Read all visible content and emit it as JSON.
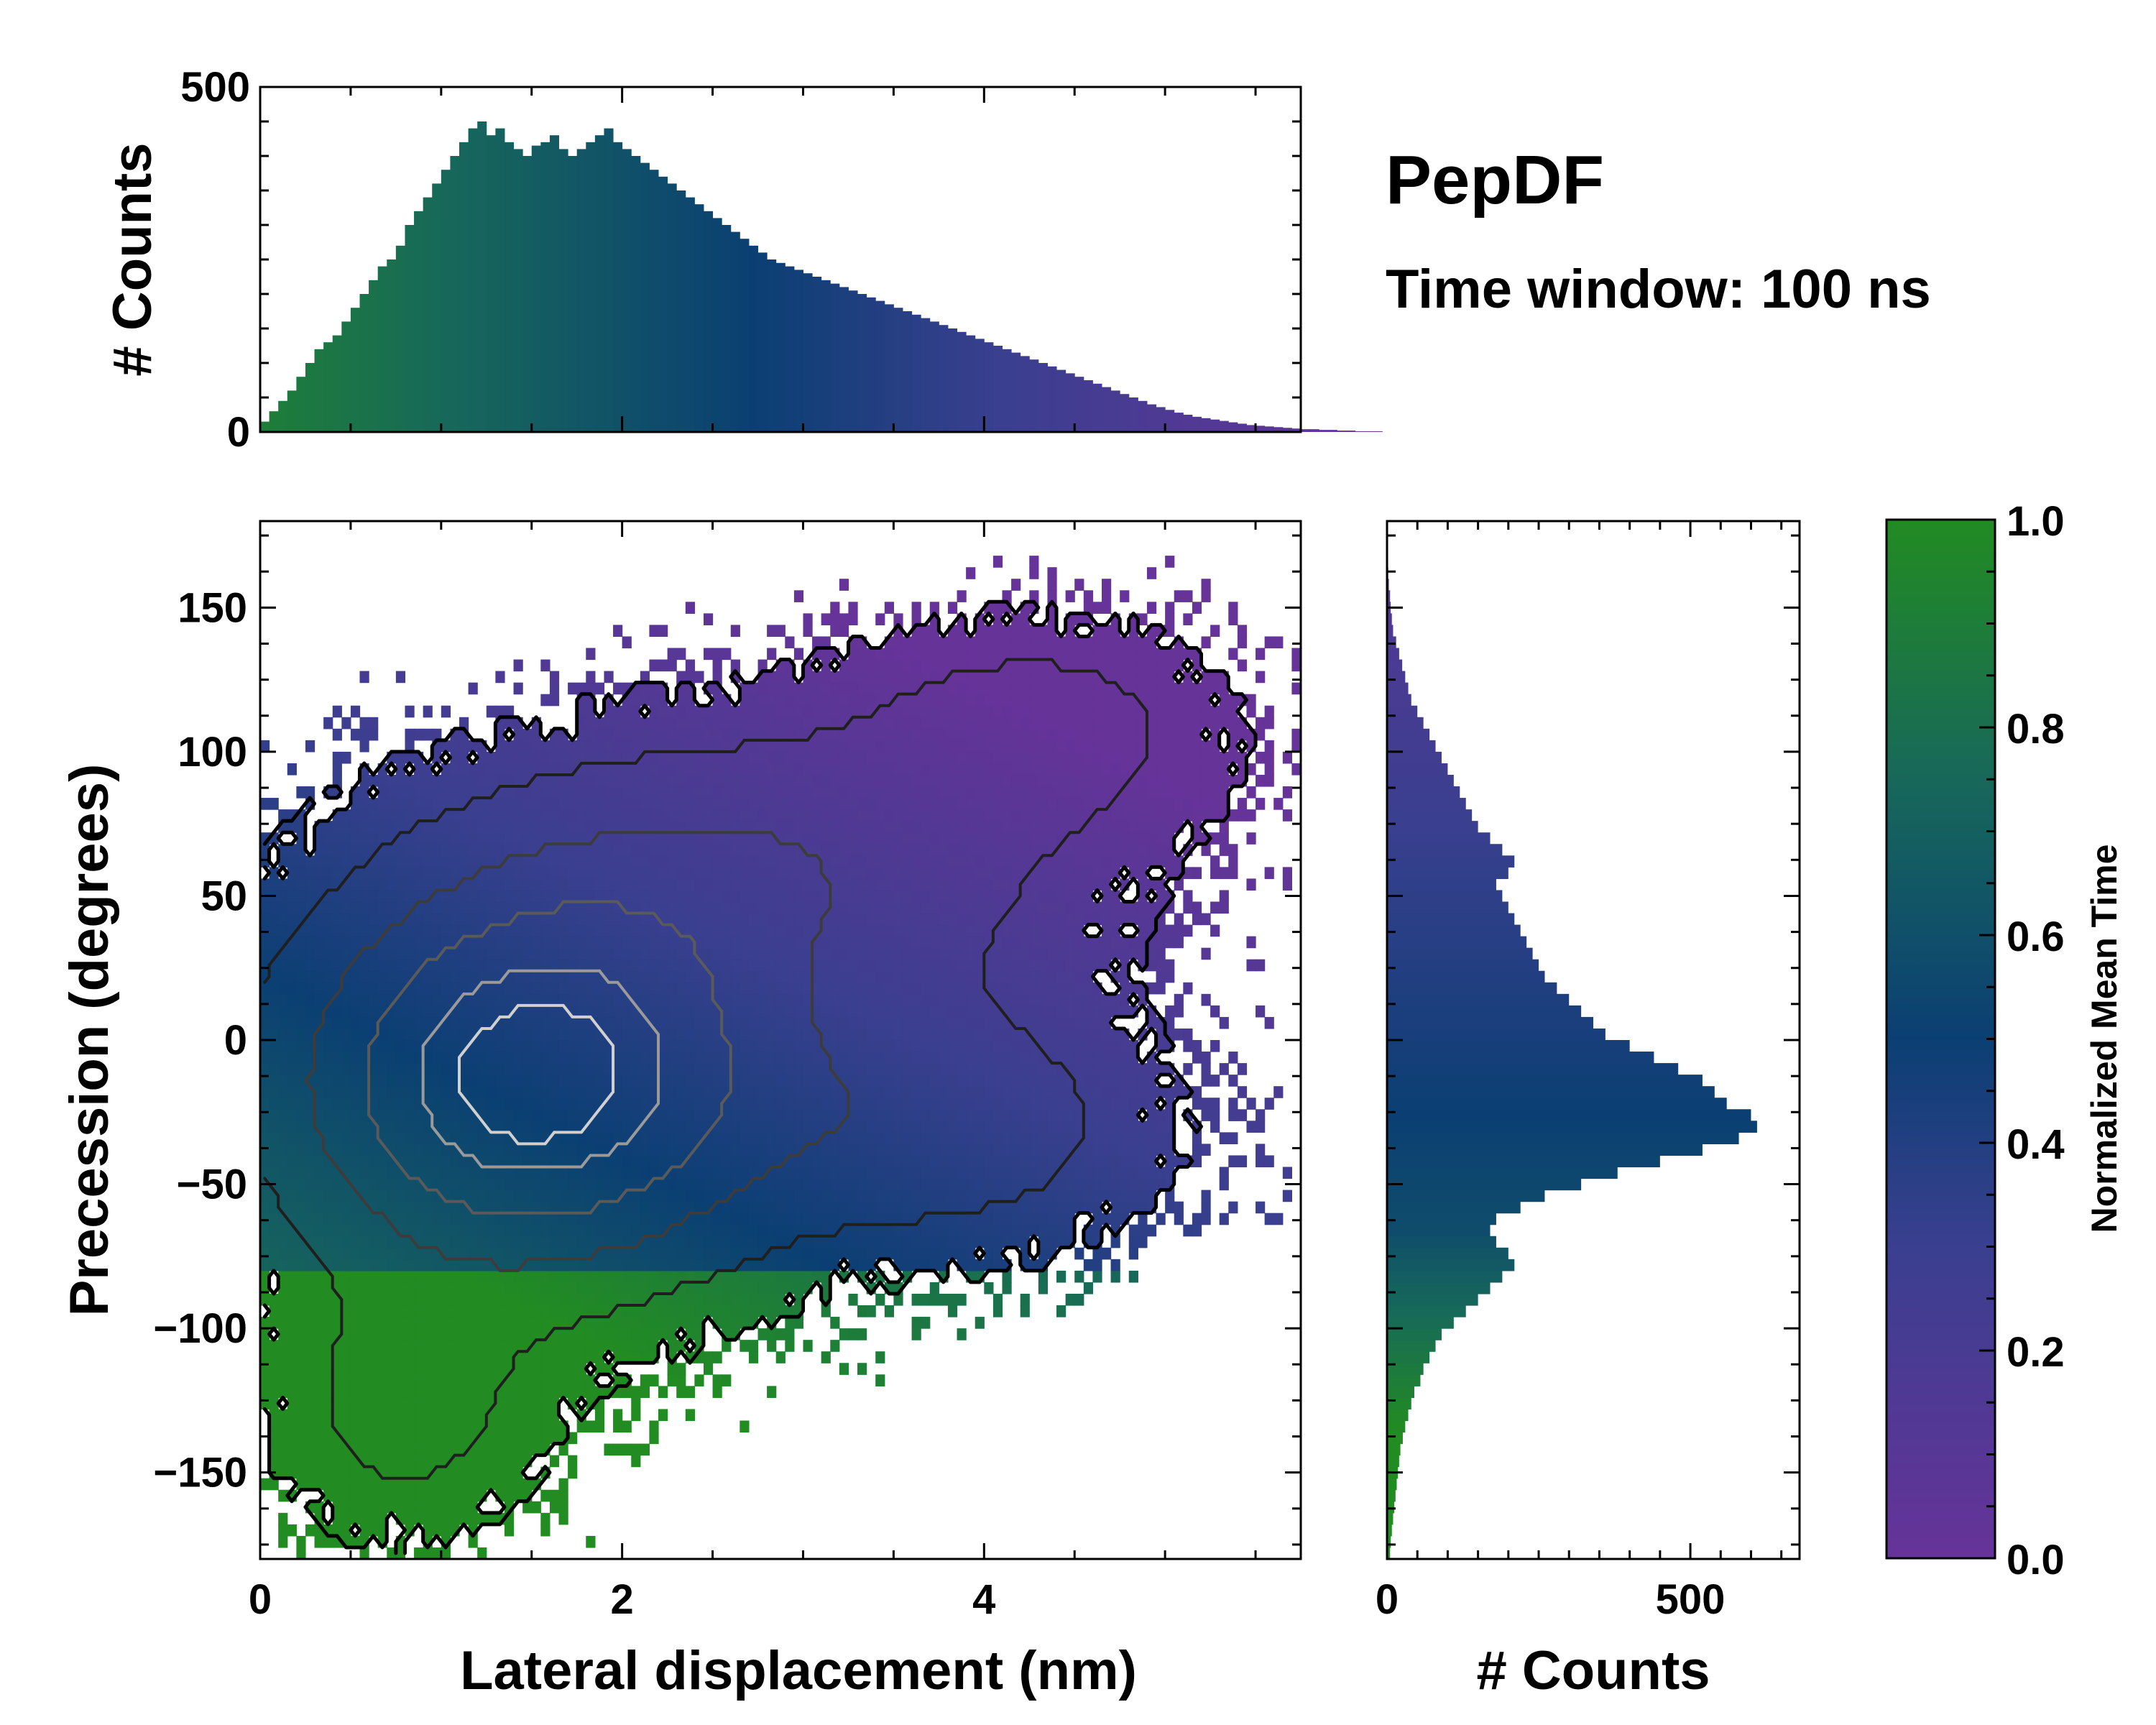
{
  "title": "PepDF",
  "subtitle": "Time window: 100 ns",
  "colors": {
    "low": "#663399",
    "mid": "#0b3f73",
    "high": "#228b22",
    "axis": "#000000"
  },
  "chart_data": [
    {
      "id": "top-histogram",
      "type": "bar",
      "title": "",
      "xlabel": "",
      "ylabel": "# Counts",
      "xlim": [
        0,
        5.75
      ],
      "ylim": [
        0,
        500
      ],
      "yticks": [
        0,
        500
      ],
      "bin_width": 0.05,
      "x_start": 0.0,
      "values": [
        15,
        30,
        45,
        60,
        80,
        100,
        120,
        130,
        140,
        160,
        180,
        200,
        220,
        240,
        250,
        270,
        300,
        320,
        340,
        360,
        380,
        400,
        420,
        440,
        450,
        430,
        440,
        420,
        410,
        400,
        415,
        420,
        430,
        410,
        400,
        410,
        420,
        430,
        440,
        420,
        410,
        400,
        390,
        380,
        370,
        360,
        350,
        340,
        330,
        320,
        310,
        300,
        290,
        280,
        270,
        260,
        250,
        245,
        240,
        235,
        230,
        225,
        220,
        215,
        210,
        205,
        200,
        195,
        190,
        185,
        180,
        175,
        170,
        165,
        160,
        155,
        150,
        145,
        140,
        135,
        130,
        125,
        120,
        115,
        110,
        105,
        100,
        95,
        90,
        85,
        80,
        75,
        70,
        65,
        60,
        55,
        50,
        45,
        40,
        36,
        32,
        28,
        25,
        22,
        20,
        18,
        16,
        14,
        12,
        10,
        9,
        8,
        7,
        6,
        5,
        4,
        4,
        3,
        3,
        2,
        2,
        1,
        1,
        1,
        0
      ]
    },
    {
      "id": "main-heatmap",
      "type": "heatmap",
      "title": "",
      "xlabel": "Lateral displacement (nm)",
      "ylabel": "Precession (degrees)",
      "xlim": [
        0,
        5.75
      ],
      "ylim": [
        -180,
        180
      ],
      "xticks": [
        0,
        2,
        4
      ],
      "yticks": [
        -150,
        -100,
        -50,
        0,
        50,
        100,
        150
      ],
      "ytick_labels": [
        "−150",
        "−100",
        "−50",
        "0",
        "50",
        "100",
        "150"
      ],
      "bin_width_x": 0.05,
      "bin_width_y": 4,
      "color_meaning": "Normalized Mean Time (0 = purple, 1 = green)",
      "density_clusters": [
        {
          "cx": 1.5,
          "cy": -15,
          "sx": 0.9,
          "sy": 45,
          "w": 1.0
        },
        {
          "cx": 2.8,
          "cy": 60,
          "sx": 1.2,
          "sy": 35,
          "w": 0.35
        },
        {
          "cx": 4.3,
          "cy": 110,
          "sx": 0.7,
          "sy": 25,
          "w": 0.25
        },
        {
          "cx": 3.8,
          "cy": -30,
          "sx": 0.8,
          "sy": 30,
          "w": 0.3
        },
        {
          "cx": 0.8,
          "cy": -130,
          "sx": 0.5,
          "sy": 30,
          "w": 0.25
        }
      ]
    },
    {
      "id": "right-histogram",
      "type": "bar",
      "orientation": "horizontal",
      "title": "",
      "xlabel": "# Counts",
      "ylabel": "",
      "xlim": [
        0,
        680
      ],
      "ylim": [
        -180,
        180
      ],
      "xticks": [
        0,
        500
      ],
      "bin_width": 4,
      "y_start": -180,
      "values": [
        5,
        6,
        8,
        10,
        12,
        14,
        16,
        18,
        20,
        22,
        26,
        30,
        35,
        40,
        45,
        55,
        60,
        70,
        80,
        90,
        110,
        130,
        150,
        170,
        190,
        210,
        200,
        180,
        170,
        180,
        220,
        260,
        320,
        380,
        450,
        520,
        580,
        610,
        600,
        560,
        540,
        520,
        480,
        440,
        400,
        360,
        340,
        320,
        300,
        280,
        260,
        250,
        240,
        230,
        220,
        210,
        200,
        190,
        180,
        200,
        210,
        190,
        170,
        150,
        140,
        130,
        120,
        110,
        100,
        90,
        80,
        70,
        60,
        50,
        40,
        35,
        30,
        25,
        20,
        15,
        10,
        8,
        6,
        5,
        3,
        2,
        1,
        0,
        0,
        0
      ]
    },
    {
      "id": "colorbar",
      "type": "colorbar",
      "label": "Normalized Mean Time",
      "range": [
        0.0,
        1.0
      ],
      "ticks": [
        "0.0",
        "0.2",
        "0.4",
        "0.6",
        "0.8",
        "1.0"
      ]
    }
  ]
}
